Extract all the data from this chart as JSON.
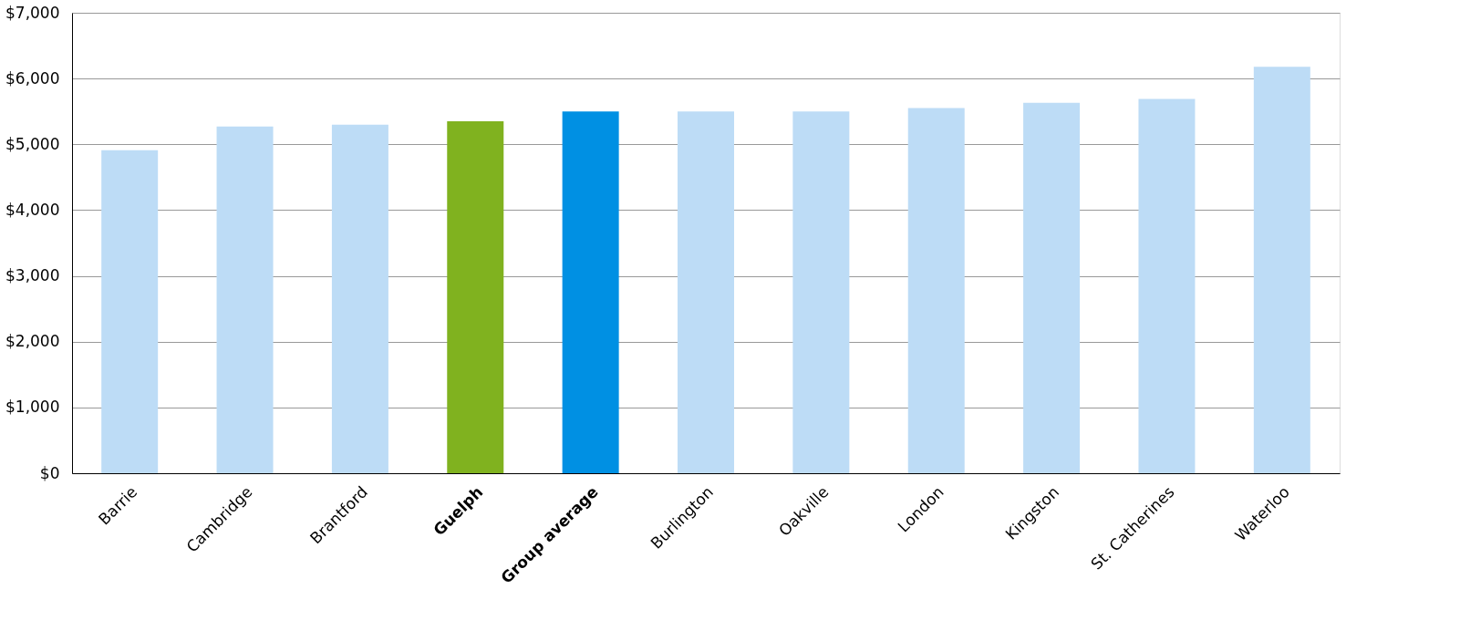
{
  "chart_data": {
    "type": "bar",
    "categories": [
      "Barrie",
      "Cambridge",
      "Brantford",
      "Guelph",
      "Group average",
      "Burlington",
      "Oakville",
      "London",
      "Kingston",
      "St. Catherines",
      "Waterloo"
    ],
    "values": [
      4910,
      5270,
      5300,
      5350,
      5500,
      5500,
      5500,
      5550,
      5630,
      5690,
      6180
    ],
    "colors": [
      "#bddcf6",
      "#bddcf6",
      "#bddcf6",
      "#80b21f",
      "#0090e3",
      "#bddcf6",
      "#bddcf6",
      "#bddcf6",
      "#bddcf6",
      "#bddcf6",
      "#bddcf6"
    ],
    "ylim": [
      0,
      7000
    ],
    "yticks": [
      {
        "value": 0,
        "label": "$0"
      },
      {
        "value": 1000,
        "label": "$1,000"
      },
      {
        "value": 2000,
        "label": "$2,000"
      },
      {
        "value": 3000,
        "label": "$3,000"
      },
      {
        "value": 4000,
        "label": "$4,000"
      },
      {
        "value": 5000,
        "label": "$5,000"
      },
      {
        "value": 6000,
        "label": "$6,000"
      },
      {
        "value": 7000,
        "label": "$7,000"
      }
    ],
    "grid": "y"
  }
}
